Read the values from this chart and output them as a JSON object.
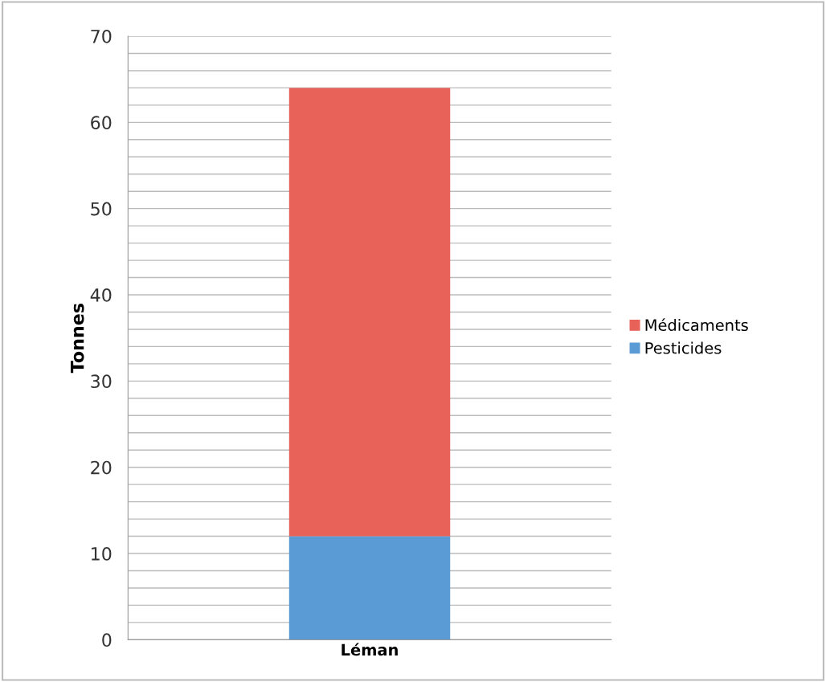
{
  "chart_data": {
    "type": "bar",
    "stacked": true,
    "ylabel": "Tonnes",
    "categories": [
      "Léman"
    ],
    "series": [
      {
        "name": "Pesticides",
        "color": "#5b9bd5",
        "values": [
          12
        ]
      },
      {
        "name": "Médicaments",
        "color": "#e8625a",
        "values": [
          52
        ]
      }
    ],
    "ylim": [
      0,
      70
    ],
    "yticks": [
      0,
      {
        "value": 2,
        "label": null
      },
      {
        "value": 4,
        "label": null
      },
      {
        "value": 6,
        "label": null
      },
      {
        "value": 8,
        "label": null
      },
      10,
      {
        "value": 12,
        "label": null
      },
      {
        "value": 14,
        "label": null
      },
      {
        "value": 16,
        "label": null
      },
      {
        "value": 18,
        "label": null
      },
      20,
      {
        "value": 22,
        "label": null
      },
      {
        "value": 24,
        "label": null
      },
      {
        "value": 26,
        "label": null
      },
      {
        "value": 28,
        "label": null
      },
      30,
      {
        "value": 32,
        "label": null
      },
      {
        "value": 34,
        "label": null
      },
      {
        "value": 36,
        "label": null
      },
      {
        "value": 38,
        "label": null
      },
      40,
      {
        "value": 42,
        "label": null
      },
      {
        "value": 44,
        "label": null
      },
      {
        "value": 46,
        "label": null
      },
      {
        "value": 48,
        "label": null
      },
      50,
      {
        "value": 52,
        "label": null
      },
      {
        "value": 54,
        "label": null
      },
      {
        "value": 56,
        "label": null
      },
      {
        "value": 58,
        "label": null
      },
      60,
      {
        "value": 62,
        "label": null
      },
      {
        "value": 64,
        "label": null
      },
      {
        "value": 66,
        "label": null
      },
      {
        "value": 68,
        "label": null
      },
      70
    ],
    "grid": "y",
    "legend": "right"
  }
}
